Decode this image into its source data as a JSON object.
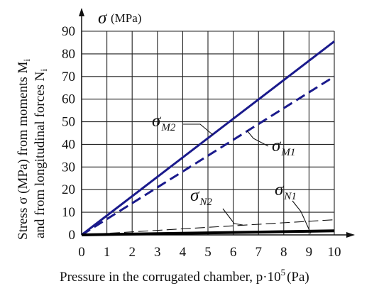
{
  "chart_data": {
    "type": "line",
    "y_axis_unit_label": "(MPa)",
    "y_axis_symbol": "σ",
    "ylabel_line1": "Stress σ (MPa) from moments M",
    "ylabel_line1_sub": "i",
    "ylabel_line2": "and from longitudinal forces N",
    "ylabel_line2_sub": "i",
    "xlabel_prefix": "Pressure in the corrugated chamber, p·10",
    "xlabel_sup": "5",
    "xlabel_suffix": "(Pa)",
    "xlim": [
      0,
      10
    ],
    "ylim": [
      0,
      90
    ],
    "x_ticks": [
      "0",
      "1",
      "2",
      "3",
      "4",
      "5",
      "6",
      "7",
      "8",
      "9",
      "10"
    ],
    "y_ticks": [
      "0",
      "10",
      "20",
      "30",
      "40",
      "50",
      "60",
      "70",
      "80",
      "90"
    ],
    "grid": true,
    "series": [
      {
        "name": "σM2",
        "symbol": "σ",
        "sub": "M2",
        "style": "solid",
        "color": "#1a1a8c",
        "x": [
          0,
          10
        ],
        "y": [
          0,
          85.5
        ]
      },
      {
        "name": "σM1",
        "symbol": "σ",
        "sub": "M1",
        "style": "dashed",
        "color": "#1a1a8c",
        "x": [
          0,
          10
        ],
        "y": [
          0,
          70
        ]
      },
      {
        "name": "σN2",
        "symbol": "σ",
        "sub": "N2",
        "style": "thin-dashed",
        "color": "#111111",
        "x": [
          0,
          10
        ],
        "y": [
          0,
          6.7
        ]
      },
      {
        "name": "σN1",
        "symbol": "σ",
        "sub": "N1",
        "style": "thick-solid",
        "color": "#000000",
        "x": [
          0,
          10
        ],
        "y": [
          0,
          1.8
        ]
      }
    ]
  }
}
